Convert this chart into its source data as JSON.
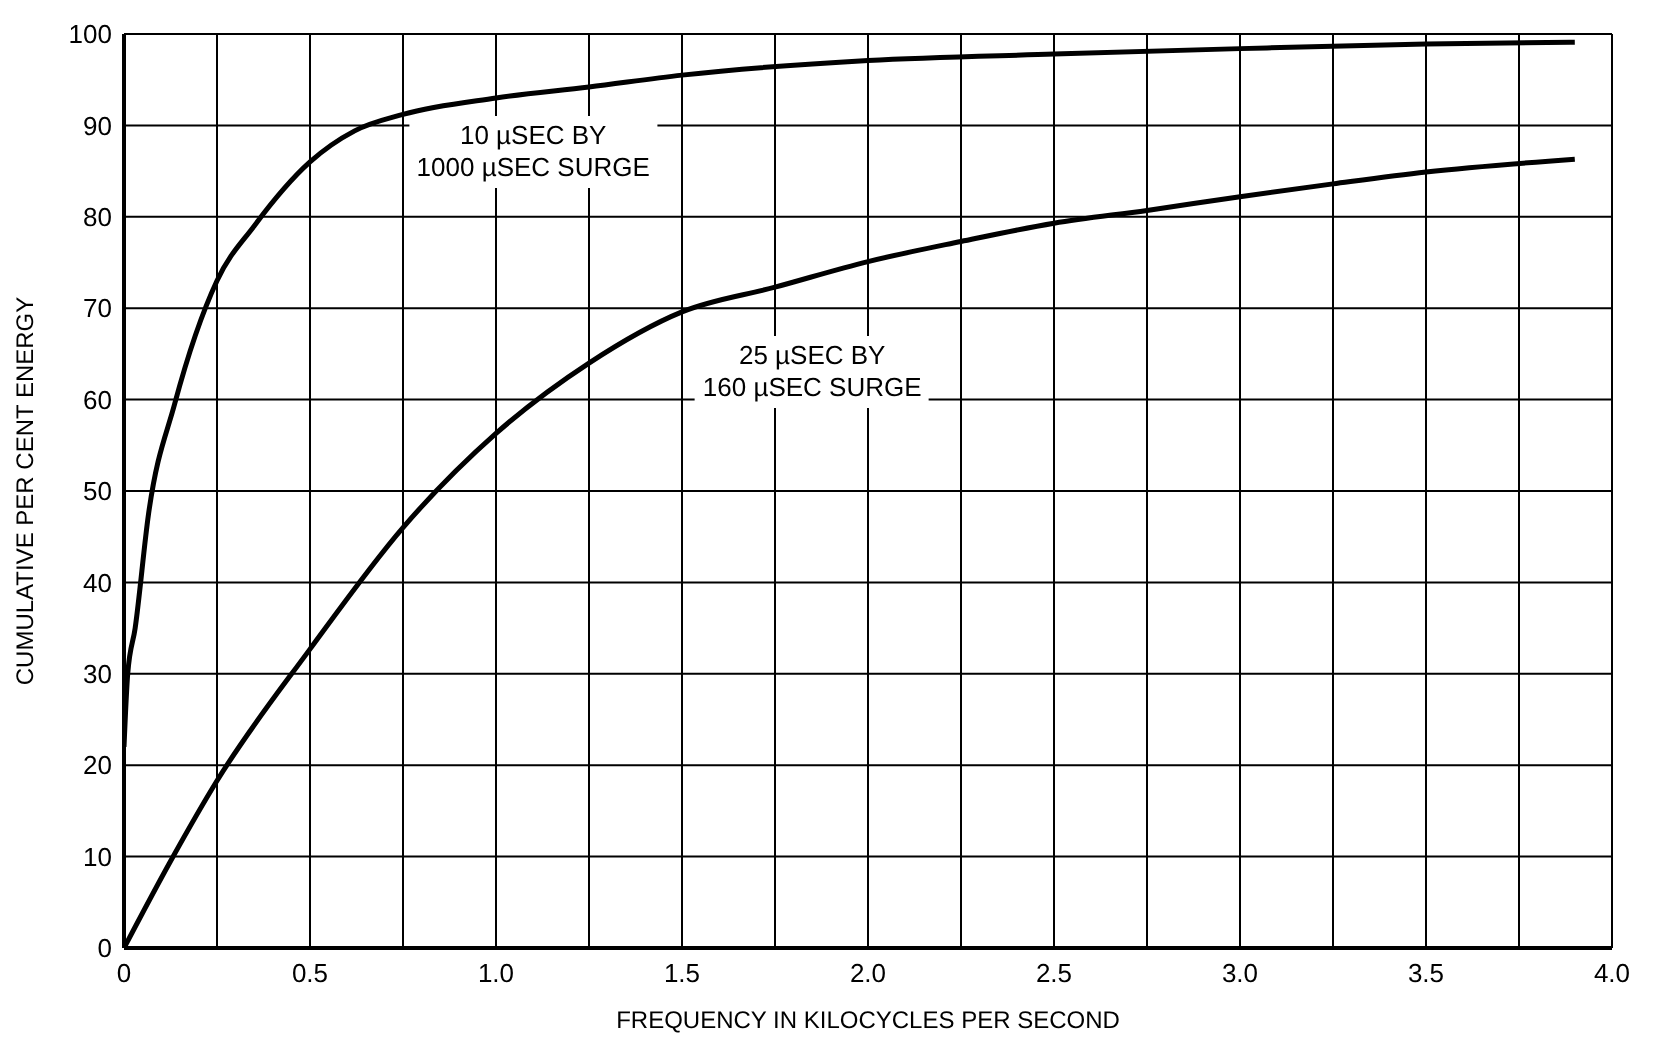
{
  "chart_data": {
    "type": "line",
    "xlabel": "FREQUENCY IN KILOCYCLES PER SECOND",
    "ylabel": "CUMULATIVE PER CENT ENERGY",
    "xlim": [
      0,
      4
    ],
    "ylim": [
      0,
      100
    ],
    "xticks": [
      0,
      {
        "value": 0.25,
        "label": null
      },
      0.5,
      {
        "value": 0.75,
        "label": null
      },
      {
        "value": 1,
        "label": "1.0"
      },
      {
        "value": 1.25,
        "label": null
      },
      1.5,
      {
        "value": 1.75,
        "label": null
      },
      {
        "value": 2,
        "label": "2.0"
      },
      {
        "value": 2.25,
        "label": null
      },
      2.5,
      {
        "value": 2.75,
        "label": null
      },
      {
        "value": 3,
        "label": "3.0"
      },
      {
        "value": 3.25,
        "label": null
      },
      3.5,
      {
        "value": 3.75,
        "label": null
      },
      {
        "value": 4,
        "label": "4.0"
      }
    ],
    "yticks": [
      0,
      10,
      20,
      30,
      40,
      50,
      60,
      70,
      80,
      90,
      100
    ],
    "grid": true,
    "marker": "none",
    "line_style": "solid",
    "series": [
      {
        "name": "10 µSEC BY\n1000 µSEC SURGE",
        "color": "#000000",
        "x": [
          0,
          0.01,
          0.03,
          0.066,
          0.136,
          0.25,
          0.35,
          0.5,
          0.62,
          0.75,
          1,
          1.25,
          1.5,
          2,
          2.5,
          3,
          3.5,
          3.9
        ],
        "values": [
          22,
          30,
          35,
          47.5,
          59.5,
          73,
          79,
          86,
          89.4,
          91.2,
          93,
          94.2,
          95.5,
          97.1,
          97.8,
          98.4,
          98.9,
          99.1
        ]
      },
      {
        "name": "25 µSEC BY\n160 µSEC SURGE",
        "color": "#000000",
        "x": [
          0,
          0.125,
          0.25,
          0.5,
          0.75,
          1,
          1.25,
          1.5,
          1.75,
          2,
          2.25,
          2.5,
          2.75,
          3,
          3.25,
          3.5,
          3.9
        ],
        "values": [
          0,
          9.5,
          18.3,
          32.7,
          46,
          56.3,
          64,
          69.6,
          72.3,
          75.1,
          77.3,
          79.3,
          80.7,
          82.2,
          83.6,
          84.9,
          86.3
        ]
      }
    ]
  }
}
